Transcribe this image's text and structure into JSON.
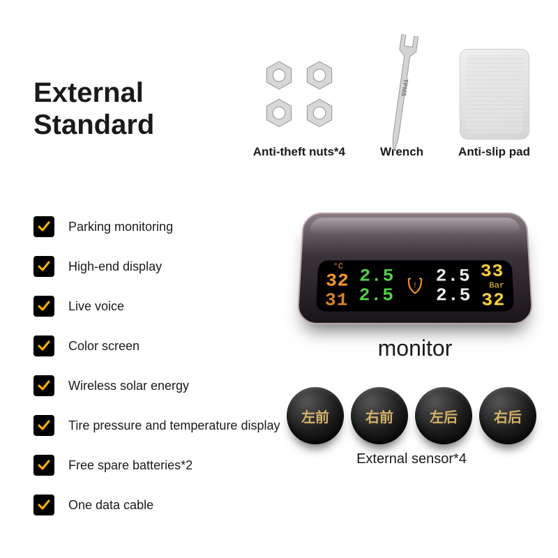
{
  "title_line1": "External",
  "title_line2": "Standard",
  "accessories": {
    "nuts": {
      "label": "Anti-theft nuts*4",
      "color": "#c9c9c9",
      "hole": "#8f8f8f"
    },
    "wrench": {
      "label": "Wrench",
      "engrave": "TPMS",
      "color": "#d0d0d0"
    },
    "pad": {
      "label": "Anti-slip pad"
    }
  },
  "features": [
    "Parking monitoring",
    "High-end display",
    "Live voice",
    "Color screen",
    "Wireless solar energy",
    "Tire pressure and temperature display",
    "Free spare batteries*2",
    "One data cable"
  ],
  "check_color": "#ffb400",
  "monitor": {
    "label": "monitor",
    "screen": {
      "temp_top": "32",
      "temp_bot": "31",
      "temp_unit": "°C",
      "press": [
        "2.5",
        "2.5",
        "2.5",
        "2.5"
      ],
      "right_top": "33",
      "right_bot": "32",
      "right_unit": "Bar",
      "colors": {
        "temp": "#ff9a2a",
        "press_left": "#55d04a",
        "press_right": "#eeeeee",
        "right": "#ffd23a"
      }
    }
  },
  "sensors": {
    "label": "External sensor*4",
    "items": [
      "左前",
      "右前",
      "左后",
      "右后"
    ],
    "text_color": "#d4b26a"
  }
}
